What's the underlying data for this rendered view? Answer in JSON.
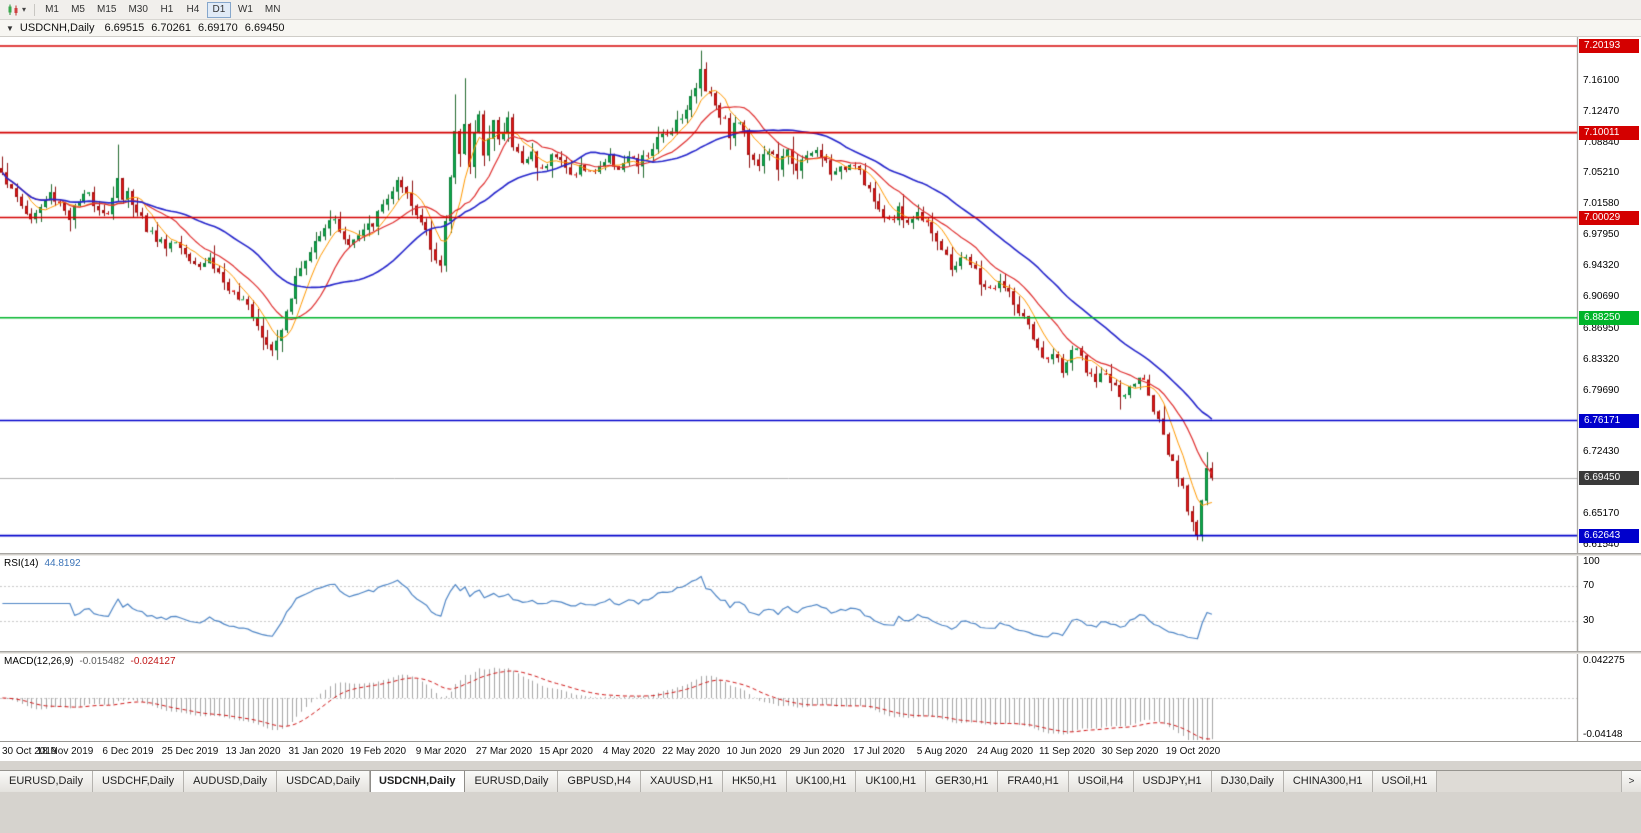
{
  "toolbar": {
    "dropdown_caret": "▾",
    "timeframes": [
      "M1",
      "M5",
      "M15",
      "M30",
      "H1",
      "H4",
      "D1",
      "W1",
      "MN"
    ],
    "active_timeframe": "D1"
  },
  "chart_header": {
    "collapse_icon": "▼",
    "symbol": "USDCNH,Daily",
    "open": "6.69515",
    "high": "6.70261",
    "low": "6.69170",
    "close": "6.69450"
  },
  "tabs": {
    "items": [
      "EURUSD,Daily",
      "USDCHF,Daily",
      "AUDUSD,Daily",
      "USDCAD,Daily",
      "USDCNH,Daily",
      "EURUSD,Daily",
      "GBPUSD,H4",
      "XAUUSD,H1",
      "HK50,H1",
      "UK100,H1",
      "UK100,H1",
      "GER30,H1",
      "FRA40,H1",
      "USOil,H4",
      "USDJPY,H1",
      "DJ30,Daily",
      "CHINA300,H1",
      "USOil,H1"
    ],
    "active_index": 4,
    "scroll_right_label": ">"
  },
  "chart_data": {
    "type": "candlestick",
    "symbol": "USDCNH",
    "period": "Daily",
    "candle_count": 252,
    "label_interval": 13,
    "last_candle_x_ratio": 0.77,
    "price_range": {
      "min": 6.606,
      "max": 7.2125
    },
    "colors": {
      "candle_up": "#0fae4e",
      "candle_up_border": "#0a8038",
      "candle_down": "#e81717",
      "candle_down_border": "#a31010",
      "wick_up": "#256b31",
      "wick_down": "#8f1414",
      "current_price_line": "#b0b0b0",
      "axis_border": "#8e8c88"
    },
    "moving_averages": [
      {
        "name": "MA-fast",
        "period": 6,
        "color": "#ff9900",
        "width": 1
      },
      {
        "name": "MA-mid",
        "period": 13,
        "color": "#e03030",
        "width": 1.2
      },
      {
        "name": "MA-slow",
        "period": 30,
        "color": "#2626cc",
        "width": 1.6
      }
    ],
    "hlines": [
      {
        "price": 7.20193,
        "label": "7.20193",
        "color": "#d40000"
      },
      {
        "price": 7.10011,
        "label": "7.10011",
        "color": "#d40000"
      },
      {
        "price": 7.00029,
        "label": "7.00029",
        "color": "#d40000"
      },
      {
        "price": 6.8825,
        "label": "6.88250",
        "color": "#00b52a"
      },
      {
        "price": 6.76171,
        "label": "6.76171",
        "color": "#0000cc"
      },
      {
        "price": 6.62643,
        "label": "6.62643",
        "color": "#0000cc"
      }
    ],
    "current_price": {
      "price": 6.6945,
      "label": "6.69450",
      "badge_color": "#3a3a3a"
    },
    "y_axis_labels": [
      "7.16100",
      "7.12470",
      "7.08840",
      "7.05210",
      "7.01580",
      "6.97950",
      "6.94320",
      "6.90690",
      "6.86950",
      "6.83320",
      "6.79690",
      "6.72430",
      "6.65170",
      "6.61540"
    ],
    "x_axis_dates": [
      "30 Oct 2019",
      "18 Nov 2019",
      "6 Dec 2019",
      "25 Dec 2019",
      "13 Jan 2020",
      "31 Jan 2020",
      "19 Feb 2020",
      "9 Mar 2020",
      "27 Mar 2020",
      "15 Apr 2020",
      "4 May 2020",
      "22 May 2020",
      "10 Jun 2020",
      "29 Jun 2020",
      "17 Jul 2020",
      "5 Aug 2020",
      "24 Aug 2020",
      "11 Sep 2020",
      "30 Sep 2020",
      "19 Oct 2020"
    ],
    "rsi": {
      "label": "RSI(14)",
      "period": 14,
      "value": 44.8192,
      "levels": [
        70,
        30
      ],
      "scale_labels": [
        "100",
        "70",
        "30"
      ],
      "color": "#4f86c6"
    },
    "macd": {
      "label": "MACD(12,26,9)",
      "fast": 12,
      "slow": 26,
      "signal": 9,
      "main_value": -0.015482,
      "signal_value": -0.024127,
      "scale_labels": [
        "0.042275",
        "-0.04148"
      ],
      "range": {
        "min": -0.0455,
        "max": 0.0465
      },
      "histogram_color": "#a6a6a6",
      "signal_color": "#d01616"
    },
    "anchors": [
      [
        0,
        7.058
      ],
      [
        2,
        7.03
      ],
      [
        4,
        7.015
      ],
      [
        6,
        6.998
      ],
      [
        8,
        7.012
      ],
      [
        10,
        7.028
      ],
      [
        12,
        7.018
      ],
      [
        14,
        7.002
      ],
      [
        16,
        7.018
      ],
      [
        18,
        7.028
      ],
      [
        20,
        7.012
      ],
      [
        22,
        7.005
      ],
      [
        24,
        7.048
      ],
      [
        25,
        7.018
      ],
      [
        26,
        7.028
      ],
      [
        28,
        7.012
      ],
      [
        30,
        6.988
      ],
      [
        32,
        6.975
      ],
      [
        34,
        6.968
      ],
      [
        36,
        6.972
      ],
      [
        38,
        6.96
      ],
      [
        39,
        6.955
      ],
      [
        41,
        6.945
      ],
      [
        43,
        6.952
      ],
      [
        45,
        6.935
      ],
      [
        47,
        6.915
      ],
      [
        49,
        6.9
      ],
      [
        51,
        6.905
      ],
      [
        52,
        6.888
      ],
      [
        54,
        6.865
      ],
      [
        56,
        6.848
      ],
      [
        57,
        6.858
      ],
      [
        58,
        6.872
      ],
      [
        59,
        6.895
      ],
      [
        60,
        6.91
      ],
      [
        61,
        6.928
      ],
      [
        62,
        6.94
      ],
      [
        64,
        6.958
      ],
      [
        66,
        6.985
      ],
      [
        68,
        7.0
      ],
      [
        70,
        6.988
      ],
      [
        72,
        6.968
      ],
      [
        74,
        6.978
      ],
      [
        76,
        6.988
      ],
      [
        78,
        7.002
      ],
      [
        80,
        7.025
      ],
      [
        82,
        7.04
      ],
      [
        84,
        7.022
      ],
      [
        86,
        7.002
      ],
      [
        88,
        6.988
      ],
      [
        90,
        6.952
      ],
      [
        91,
        6.942
      ],
      [
        92,
        6.99
      ],
      [
        93,
        7.05
      ],
      [
        94,
        7.1
      ],
      [
        95,
        7.08
      ],
      [
        96,
        7.115
      ],
      [
        97,
        7.06
      ],
      [
        98,
        7.095
      ],
      [
        99,
        7.115
      ],
      [
        100,
        7.08
      ],
      [
        101,
        7.1
      ],
      [
        102,
        7.115
      ],
      [
        103,
        7.09
      ],
      [
        104,
        7.1
      ],
      [
        105,
        7.115
      ],
      [
        106,
        7.085
      ],
      [
        108,
        7.065
      ],
      [
        110,
        7.075
      ],
      [
        112,
        7.055
      ],
      [
        114,
        7.08
      ],
      [
        116,
        7.065
      ],
      [
        118,
        7.05
      ],
      [
        120,
        7.06
      ],
      [
        122,
        7.052
      ],
      [
        124,
        7.062
      ],
      [
        126,
        7.07
      ],
      [
        128,
        7.06
      ],
      [
        130,
        7.07
      ],
      [
        132,
        7.062
      ],
      [
        134,
        7.075
      ],
      [
        136,
        7.09
      ],
      [
        138,
        7.1
      ],
      [
        140,
        7.115
      ],
      [
        142,
        7.13
      ],
      [
        144,
        7.15
      ],
      [
        145,
        7.175
      ],
      [
        146,
        7.155
      ],
      [
        147,
        7.145
      ],
      [
        149,
        7.125
      ],
      [
        151,
        7.1
      ],
      [
        153,
        7.115
      ],
      [
        155,
        7.08
      ],
      [
        157,
        7.065
      ],
      [
        159,
        7.08
      ],
      [
        161,
        7.06
      ],
      [
        163,
        7.075
      ],
      [
        165,
        7.06
      ],
      [
        167,
        7.07
      ],
      [
        169,
        7.078
      ],
      [
        171,
        7.065
      ],
      [
        173,
        7.05
      ],
      [
        175,
        7.06
      ],
      [
        177,
        7.068
      ],
      [
        179,
        7.045
      ],
      [
        181,
        7.02
      ],
      [
        182,
        7.005
      ],
      [
        184,
        6.998
      ],
      [
        186,
        7.008
      ],
      [
        188,
        6.995
      ],
      [
        190,
        7.005
      ],
      [
        192,
        6.998
      ],
      [
        194,
        6.975
      ],
      [
        195,
        6.96
      ],
      [
        197,
        6.94
      ],
      [
        199,
        6.955
      ],
      [
        201,
        6.945
      ],
      [
        203,
        6.925
      ],
      [
        205,
        6.915
      ],
      [
        207,
        6.925
      ],
      [
        208,
        6.917
      ],
      [
        210,
        6.9
      ],
      [
        212,
        6.88
      ],
      [
        214,
        6.855
      ],
      [
        216,
        6.832
      ],
      [
        218,
        6.842
      ],
      [
        220,
        6.818
      ],
      [
        221,
        6.832
      ],
      [
        223,
        6.845
      ],
      [
        225,
        6.825
      ],
      [
        227,
        6.805
      ],
      [
        229,
        6.818
      ],
      [
        231,
        6.798
      ],
      [
        233,
        6.788
      ],
      [
        234,
        6.8
      ],
      [
        236,
        6.812
      ],
      [
        238,
        6.798
      ],
      [
        240,
        6.758
      ],
      [
        241,
        6.738
      ],
      [
        242,
        6.72
      ],
      [
        243,
        6.708
      ],
      [
        244,
        6.695
      ],
      [
        245,
        6.678
      ],
      [
        246,
        6.66
      ],
      [
        247,
        6.645
      ],
      [
        248,
        6.633
      ],
      [
        249,
        6.668
      ],
      [
        250,
        6.705
      ],
      [
        251,
        6.6945
      ]
    ],
    "overrides": {
      "0": {
        "high": 7.072
      },
      "24": {
        "high": 7.086
      },
      "56": {
        "low": 6.8405
      },
      "82": {
        "high": 7.048
      },
      "94": {
        "high": 7.145
      },
      "96": {
        "high": 7.164
      },
      "145": {
        "high": 7.1965
      },
      "248": {
        "low": 6.6264
      },
      "250": {
        "high": 6.7245
      }
    }
  }
}
